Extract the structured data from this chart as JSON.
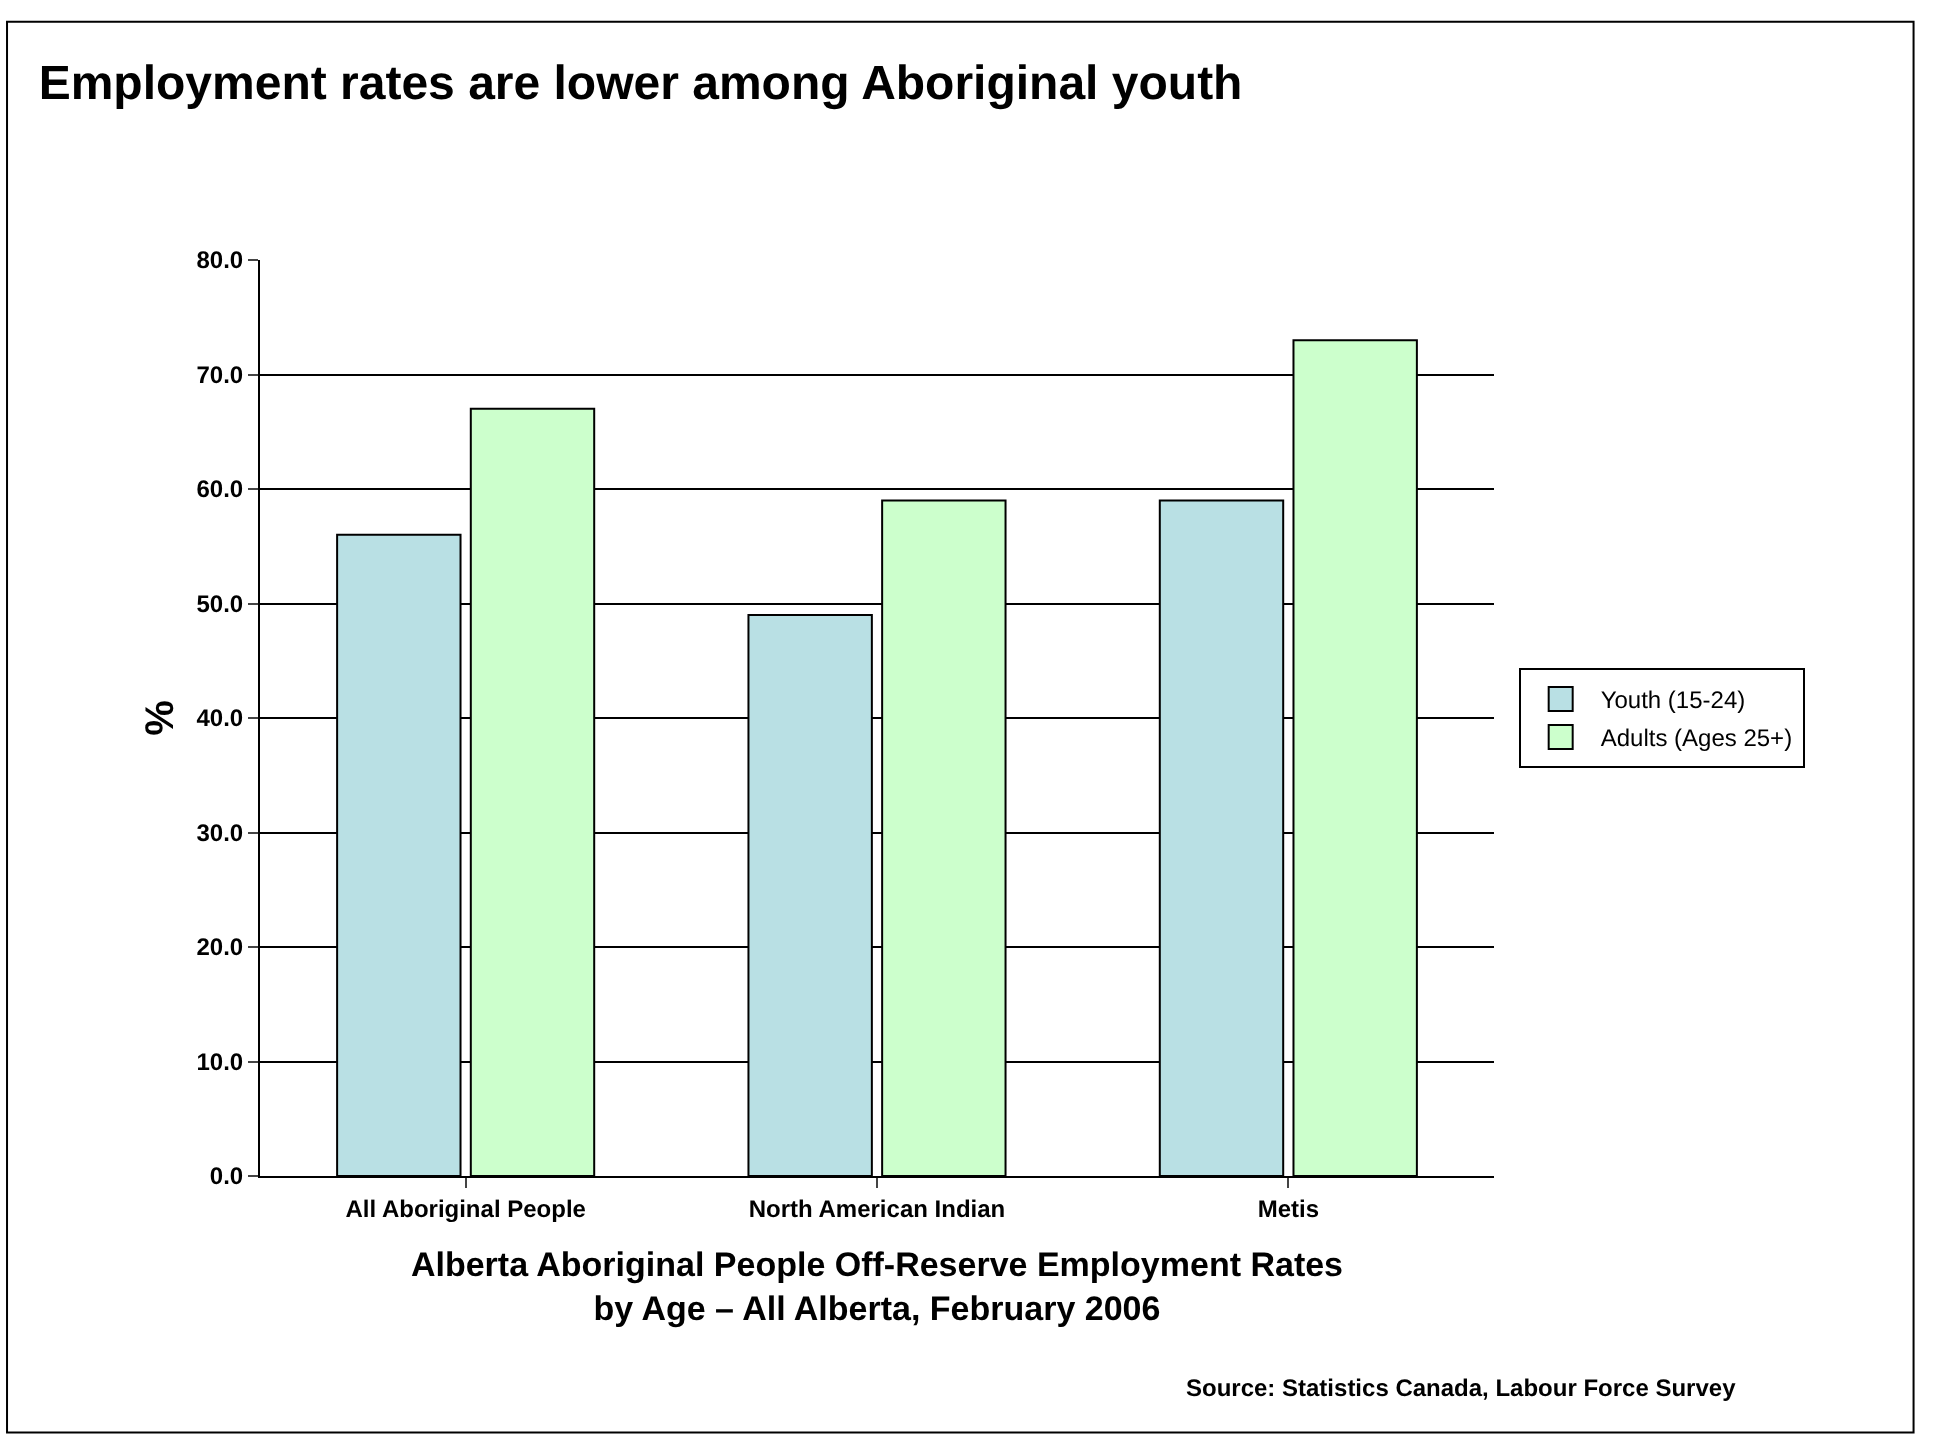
{
  "chart_data": {
    "type": "bar",
    "title": "Employment rates are lower among Aboriginal youth",
    "xlabel": "Alberta Aboriginal People Off-Reserve Employment Rates\nby Age – All Alberta, February 2006",
    "ylabel": "%",
    "categories": [
      "All Aboriginal People",
      "North American Indian",
      "Metis"
    ],
    "series": [
      {
        "name": "Youth (15-24)",
        "color": "#b9e0e4",
        "values": [
          56,
          49,
          59
        ]
      },
      {
        "name": "Adults (Ages 25+)",
        "color": "#ccffcc",
        "values": [
          67,
          59,
          73
        ]
      }
    ],
    "ylim": [
      0,
      80
    ],
    "yticks": [
      {
        "value": 0,
        "label": "0.0"
      },
      {
        "value": 10,
        "label": "10.0"
      },
      {
        "value": 20,
        "label": "20.0"
      },
      {
        "value": 30,
        "label": "30.0"
      },
      {
        "value": 40,
        "label": "40.0"
      },
      {
        "value": 50,
        "label": "50.0"
      },
      {
        "value": 60,
        "label": "60.0"
      },
      {
        "value": 70,
        "label": "70.0"
      },
      {
        "value": 80,
        "label": "80.0"
      }
    ],
    "grid": "y",
    "legend": "right",
    "annotations": [
      "Source: Statistics Canada, Labour Force Survey"
    ]
  }
}
